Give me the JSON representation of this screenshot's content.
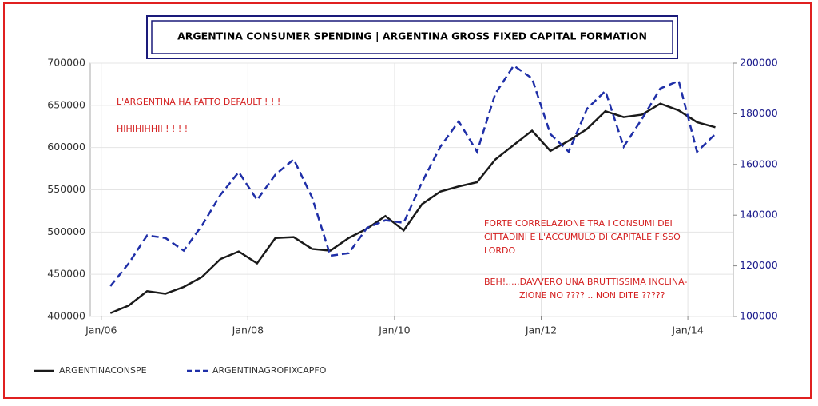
{
  "chart_data": {
    "type": "line",
    "title": "ARGENTINA CONSUMER SPENDING |  ARGENTINA GROSS FIXED CAPITAL FORMATION",
    "annotations": [
      [
        "L'ARGENTINA HA FATTO DEFAULT ! ! !"
      ],
      [
        "HIHIHIHHII ! ! ! !"
      ],
      [
        "FORTE CORRELAZIONE TRA I CONSUMI DEI",
        "CITTADINI E L'ACCUMULO DI CAPITALE FISSO",
        "LORDO"
      ],
      [
        "BEH!.....DAVVERO UNA BRUTTISSIMA INCLINA-",
        "ZIONE  NO ???? .. NON DITE ?????"
      ]
    ],
    "x": [
      2006.125,
      2006.375,
      2006.625,
      2006.875,
      2007.125,
      2007.375,
      2007.625,
      2007.875,
      2008.125,
      2008.375,
      2008.625,
      2008.875,
      2009.125,
      2009.375,
      2009.625,
      2009.875,
      2010.125,
      2010.375,
      2010.625,
      2010.875,
      2011.125,
      2011.375,
      2011.625,
      2011.875,
      2012.125,
      2012.375,
      2012.625,
      2012.875,
      2013.125,
      2013.375,
      2013.625,
      2013.875,
      2014.125,
      2014.375
    ],
    "series": [
      {
        "name": "ARGENTINACONSPE",
        "color": "#1a1a1a",
        "dash": false,
        "values": [
          404000,
          413000,
          430000,
          427000,
          435000,
          447000,
          468000,
          477000,
          463000,
          493000,
          494000,
          480000,
          478000,
          493000,
          504000,
          519000,
          502000,
          533000,
          548000,
          554000,
          559000,
          586000,
          603000,
          620000,
          596000,
          608000,
          622000,
          643000,
          636000,
          639000,
          652000,
          644000,
          630000,
          624000
        ]
      },
      {
        "name": "ARGENTINAGROFIXCAPFO",
        "color": "#1f2fa8",
        "dash": true,
        "axis": "y2",
        "values": [
          112000,
          121000,
          132000,
          131000,
          126000,
          136000,
          148000,
          157000,
          146000,
          156000,
          162000,
          147000,
          124000,
          125000,
          135000,
          138000,
          137000,
          153000,
          167000,
          177000,
          165000,
          188000,
          199000,
          194000,
          172000,
          165000,
          182000,
          189000,
          167000,
          178000,
          190000,
          193000,
          165000,
          172000
        ]
      }
    ],
    "xlim": [
      2005.85,
      2014.62
    ],
    "xticks": [
      {
        "value": 2006,
        "label": "Jan/06"
      },
      {
        "value": 2008,
        "label": "Jan/08"
      },
      {
        "value": 2010,
        "label": "Jan/10"
      },
      {
        "value": 2012,
        "label": "Jan/12"
      },
      {
        "value": 2014,
        "label": "Jan/14"
      }
    ],
    "ylim": [
      400000,
      700000
    ],
    "yticks": [
      400000,
      450000,
      500000,
      550000,
      600000,
      650000,
      700000
    ],
    "y2lim": [
      100000,
      200000
    ],
    "y2ticks": [
      100000,
      120000,
      140000,
      160000,
      180000,
      200000
    ],
    "grid": true
  }
}
